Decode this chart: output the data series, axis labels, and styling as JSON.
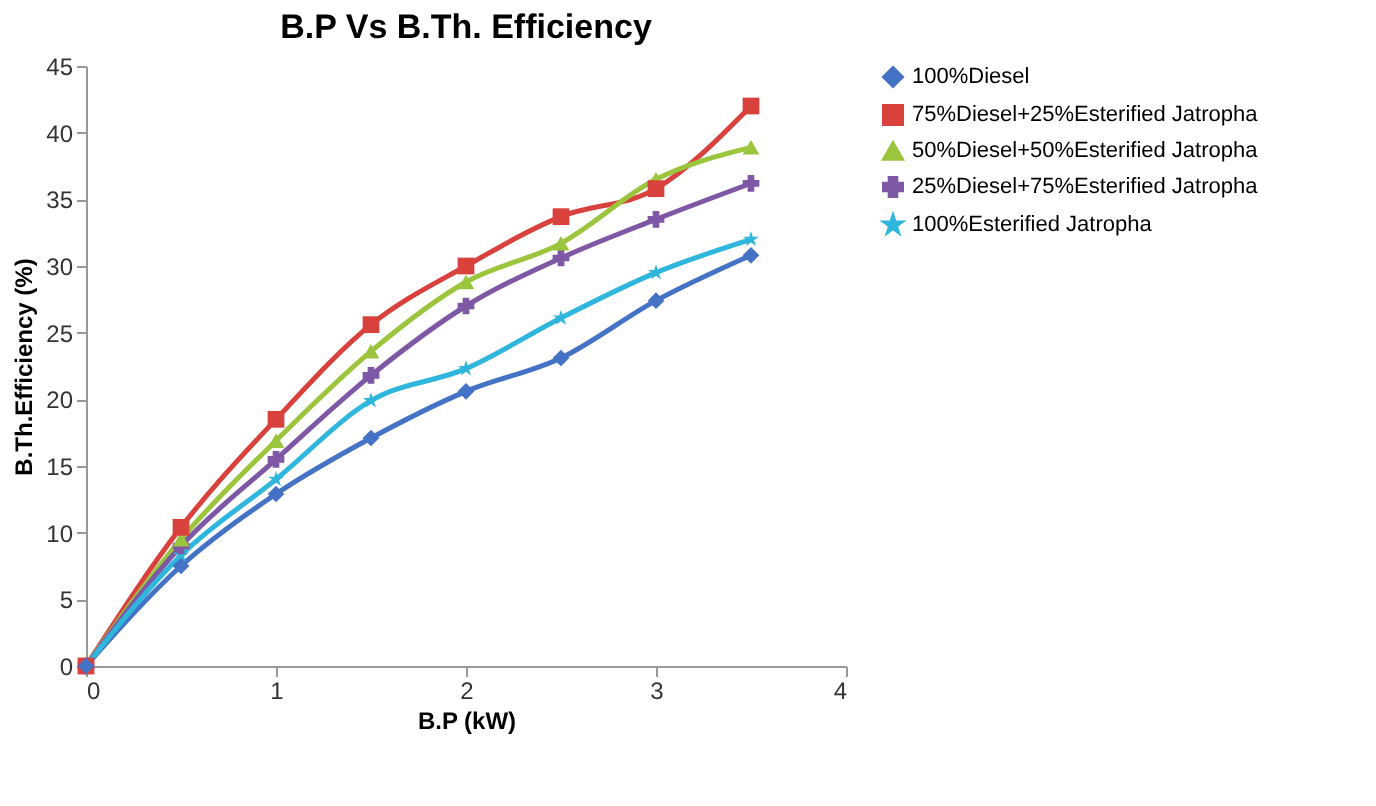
{
  "chart_data": {
    "type": "line",
    "title": "B.P Vs B.Th. Efficiency",
    "xlabel": "B.P (kW)",
    "ylabel": "B.Th.Efficiency (%)",
    "x": [
      0,
      0.5,
      1,
      1.5,
      2,
      2.5,
      3,
      3.5
    ],
    "series": [
      {
        "name": "100%Diesel",
        "color": "#4472c4",
        "marker": "diamond",
        "values": [
          0,
          7.5,
          12.9,
          17.1,
          20.6,
          23.1,
          27.4,
          30.8
        ]
      },
      {
        "name": "75%Diesel+25%Esterified Jatropha",
        "color": "#d9413c",
        "marker": "square",
        "values": [
          0,
          10.4,
          18.5,
          25.6,
          30.0,
          33.7,
          35.8,
          42.0
        ]
      },
      {
        "name": "50%Diesel+50%Esterified Jatropha",
        "color": "#9bc53d",
        "marker": "triangle",
        "values": [
          0,
          9.5,
          16.9,
          23.6,
          28.8,
          31.7,
          36.5,
          38.9
        ]
      },
      {
        "name": "25%Diesel+75%Esterified Jatropha",
        "color": "#7e57a5",
        "marker": "cross",
        "values": [
          0,
          9.0,
          15.5,
          21.8,
          27.0,
          30.6,
          33.5,
          36.2
        ]
      },
      {
        "name": "100%Esterified Jatropha",
        "color": "#2fb6dd",
        "marker": "star",
        "values": [
          0,
          8.3,
          14.0,
          19.9,
          22.3,
          26.1,
          29.5,
          32.0
        ]
      }
    ],
    "xlim": [
      0,
      4
    ],
    "xticks": [
      0,
      1,
      2,
      3,
      4
    ],
    "ylim": [
      0,
      45
    ],
    "yticks": [
      0,
      5,
      10,
      15,
      20,
      25,
      30,
      35,
      40,
      45
    ],
    "grid": false,
    "legend": "right",
    "line_style": "solid"
  }
}
